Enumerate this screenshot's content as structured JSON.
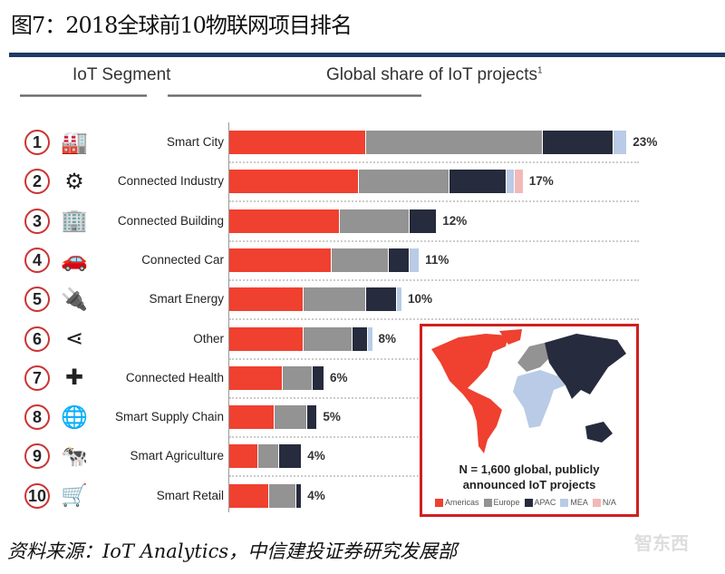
{
  "title": "图7：2018全球前10物联网项目排名",
  "headers": {
    "segment": "IoT Segment",
    "share": "Global share of IoT projects",
    "share_superscript": "1"
  },
  "chart_data": {
    "type": "bar",
    "orientation": "horizontal",
    "stacked": true,
    "unit": "%",
    "categories": [
      "Smart City",
      "Connected Industry",
      "Connected Building",
      "Connected Car",
      "Smart Energy",
      "Other",
      "Connected Health",
      "Smart Supply Chain",
      "Smart Agriculture",
      "Smart Retail"
    ],
    "ranks": [
      "1",
      "2",
      "3",
      "4",
      "5",
      "6",
      "7",
      "8",
      "9",
      "10"
    ],
    "icons": [
      "city-skyline-icon",
      "robot-arm-icon",
      "building-icon",
      "car-icon",
      "plug-icon",
      "share-icon",
      "first-aid-kit-icon",
      "truck-globe-icon",
      "cow-icon",
      "shopping-cart-icon"
    ],
    "totals_labels": [
      "23%",
      "17%",
      "12%",
      "11%",
      "10%",
      "8%",
      "6%",
      "5%",
      "4%",
      "4%"
    ],
    "series": [
      {
        "name": "Americas",
        "color": "#f0402f",
        "values": [
          7.9,
          7.5,
          6.4,
          5.9,
          4.3,
          4.3,
          3.1,
          2.6,
          1.7,
          2.3
        ]
      },
      {
        "name": "Europe",
        "color": "#939393",
        "values": [
          10.2,
          5.2,
          4.0,
          3.3,
          3.6,
          2.8,
          1.7,
          1.9,
          1.2,
          1.6
        ]
      },
      {
        "name": "APAC",
        "color": "#262b3d",
        "values": [
          4.1,
          3.3,
          1.6,
          1.2,
          1.8,
          0.9,
          0.7,
          0.6,
          1.3,
          0.3
        ]
      },
      {
        "name": "MEA",
        "color": "#b9cbe6",
        "values": [
          0.8,
          0.5,
          0,
          0.6,
          0.3,
          0.3,
          0,
          0,
          0,
          0
        ]
      },
      {
        "name": "N/A",
        "color": "#f2b8b8",
        "values": [
          0,
          0.5,
          0,
          0,
          0,
          0,
          0,
          0,
          0,
          0
        ]
      }
    ],
    "xlim": [
      0,
      25
    ],
    "grid": "dotted horizontal separators",
    "legend_position": "inside map box, bottom"
  },
  "map": {
    "caption_line1": "N = 1,600 global, publicly",
    "caption_line2": "announced IoT projects"
  },
  "source": "资料来源：IoT Analytics，中信建投证券研究发展部",
  "watermark": "智东西"
}
